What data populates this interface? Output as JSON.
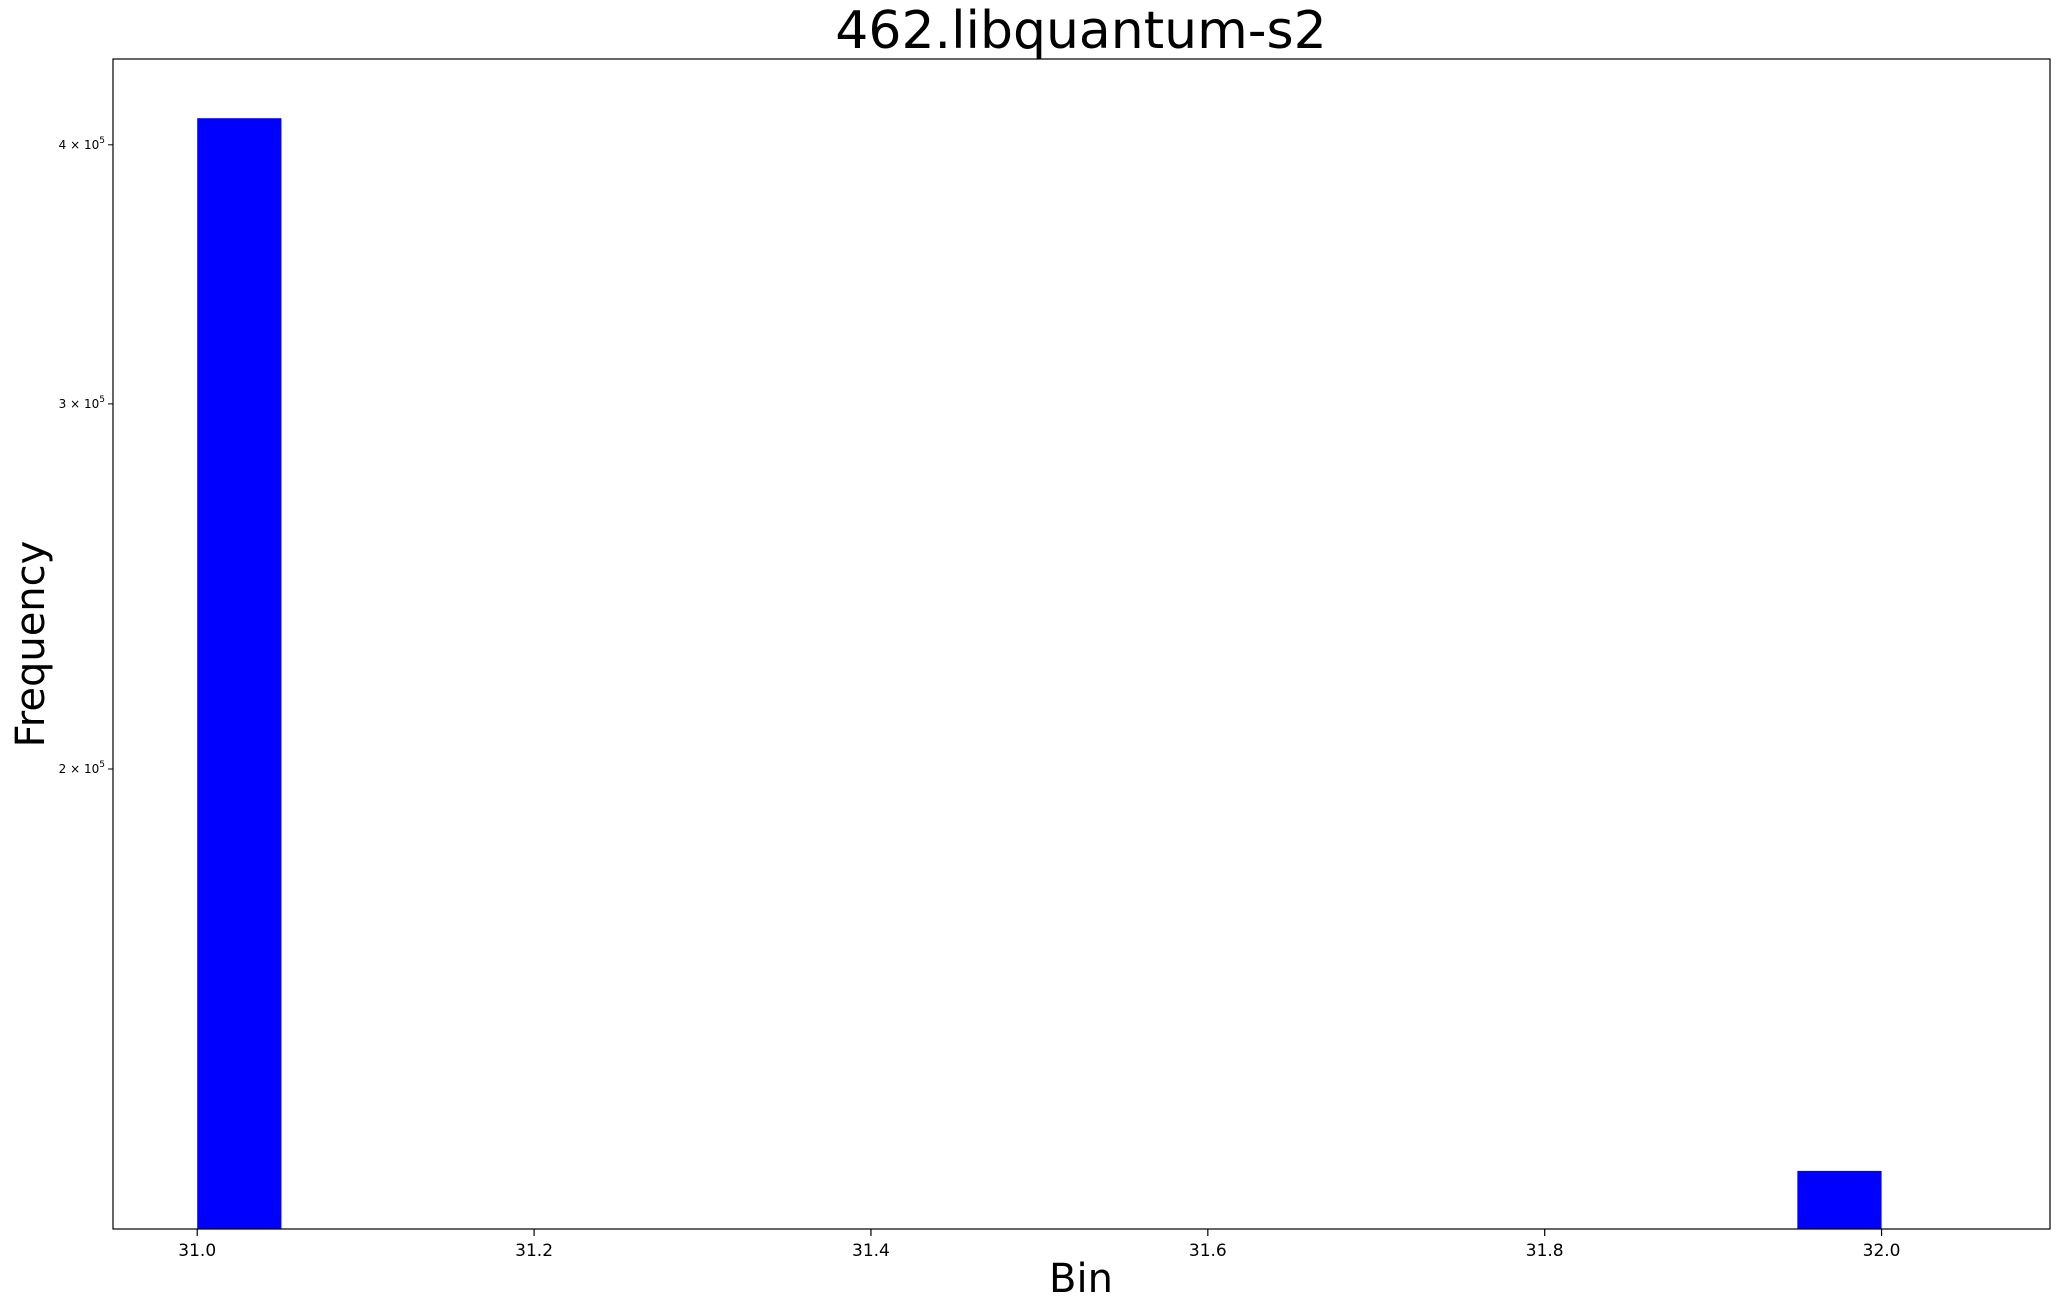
{
  "chart_data": {
    "type": "bar",
    "title": "462.libquantum-s2",
    "xlabel": "Bin",
    "ylabel": "Frequency",
    "x_scale": "linear",
    "y_scale": "log",
    "xlim": [
      30.95,
      32.1
    ],
    "ylim": [
      120000,
      440000
    ],
    "x_ticks": [
      {
        "value": 31.0,
        "label": "31.0"
      },
      {
        "value": 31.2,
        "label": "31.2"
      },
      {
        "value": 31.4,
        "label": "31.4"
      },
      {
        "value": 31.6,
        "label": "31.6"
      },
      {
        "value": 31.8,
        "label": "31.8"
      },
      {
        "value": 32.0,
        "label": "32.0"
      }
    ],
    "y_ticks": [
      {
        "value": 200000,
        "base": "2 × 10",
        "exp": "5"
      },
      {
        "value": 300000,
        "base": "3 × 10",
        "exp": "5"
      },
      {
        "value": 400000,
        "base": "4 × 10",
        "exp": "5"
      }
    ],
    "bin_width": 0.05,
    "bars": [
      {
        "x_start": 31.0,
        "value": 412000
      },
      {
        "x_start": 31.95,
        "value": 128000
      }
    ],
    "bar_color": "#0000ff",
    "grid": false,
    "legend": "none"
  }
}
